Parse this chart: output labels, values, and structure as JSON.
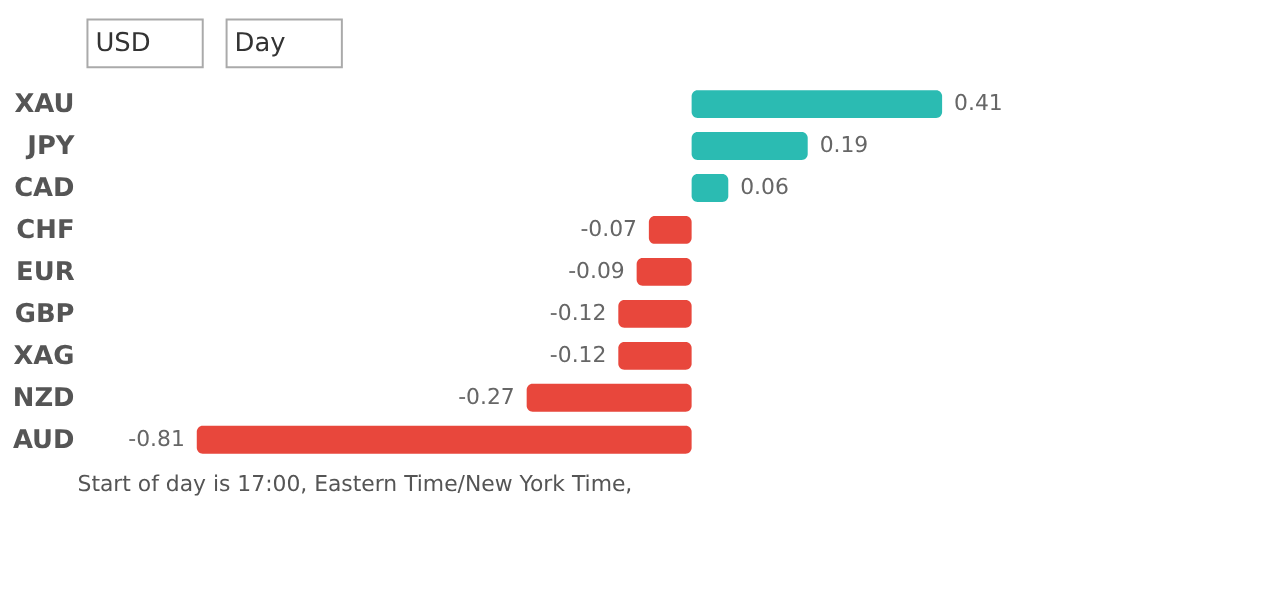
{
  "chart_data": {
    "type": "bar",
    "orientation": "horizontal",
    "categories": [
      "XAU",
      "JPY",
      "CAD",
      "CHF",
      "EUR",
      "GBP",
      "XAG",
      "NZD",
      "AUD"
    ],
    "values": [
      0.41,
      0.19,
      0.06,
      -0.07,
      -0.09,
      -0.12,
      -0.12,
      -0.27,
      -0.81
    ],
    "colors": [
      "#2bbbb2",
      "#2bbbb2",
      "#2bbbb2",
      "#e8473c",
      "#e8473c",
      "#e8473c",
      "#e8473c",
      "#e8473c",
      "#e8473c"
    ],
    "data_labels": true,
    "grid": false,
    "annotations": [
      "USD",
      "Day",
      "Start of day is 17:00, Eastern Time/New York Time,"
    ]
  }
}
